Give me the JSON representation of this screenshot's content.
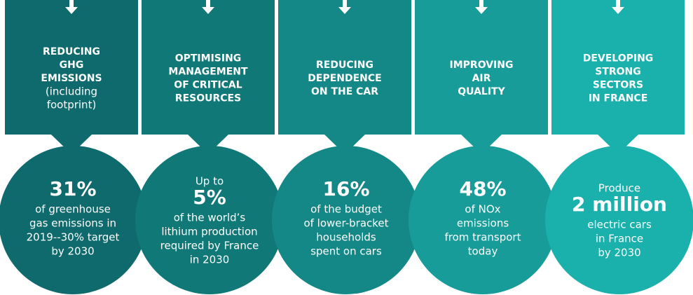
{
  "columns": [
    {
      "title": [
        "REDUCING",
        "GHG",
        "EMISSIONS"
      ],
      "subtitle": [
        "(including",
        "footprint)"
      ],
      "color": "#0e6a6c",
      "pre": [],
      "stat": "31%",
      "text": [
        "of greenhouse",
        "gas emissions in",
        "2019--30% target",
        "by 2030"
      ]
    },
    {
      "title": [
        "OPTIMISING",
        "MANAGEMENT",
        "OF CRITICAL",
        "RESOURCES"
      ],
      "subtitle": [],
      "color": "#117878",
      "pre": [
        "Up to"
      ],
      "stat": "5%",
      "text": [
        "of the world’s",
        "lithium production",
        "required by France",
        "in 2030"
      ]
    },
    {
      "title": [
        "REDUCING",
        "DEPENDENCE",
        "ON THE CAR"
      ],
      "subtitle": [],
      "color": "#148886",
      "pre": [],
      "stat": "16%",
      "text": [
        "of the budget",
        "of lower-bracket",
        "households",
        "spent on cars"
      ]
    },
    {
      "title": [
        "IMPROVING",
        "AIR",
        "QUALITY"
      ],
      "subtitle": [],
      "color": "#179c99",
      "pre": [],
      "stat": "48%",
      "text": [
        "of NOx",
        "emissions",
        "from transport",
        "today"
      ]
    },
    {
      "title": [
        "DEVELOPING",
        "STRONG",
        "SECTORS",
        "IN FRANCE"
      ],
      "subtitle": [],
      "color": "#1ab0ac",
      "pre": [
        "Produce"
      ],
      "stat": "2 million",
      "text": [
        "electric cars",
        "in France",
        "by 2030"
      ]
    }
  ]
}
